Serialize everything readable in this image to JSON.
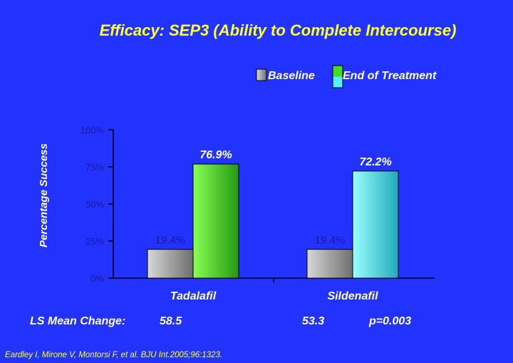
{
  "title": "Efficacy: SEP3 (Ability to Complete Intercourse)",
  "chart_data": {
    "type": "bar",
    "categories": [
      "Tadalafil",
      "Sildenafil"
    ],
    "series": [
      {
        "name": "Baseline",
        "values": [
          19.4,
          19.4
        ],
        "labels": [
          "19.4%",
          "19.4%"
        ],
        "color": "#9a9a9a"
      },
      {
        "name": "End of Treatment",
        "values": [
          76.9,
          72.2
        ],
        "labels": [
          "76.9%",
          "72.2%"
        ],
        "colors": [
          "#44dd22",
          "#55eeff"
        ]
      }
    ],
    "ylabel": "Percentage Success",
    "ylim": [
      0,
      100
    ],
    "yticks": [
      0,
      25,
      50,
      75,
      100
    ],
    "ytick_labels": [
      "0%",
      "25%",
      "50%",
      "75%",
      "100%"
    ],
    "grid": false,
    "legend_position": "top-right"
  },
  "ls_mean": {
    "label": "LS Mean Change:",
    "tadalafil": "58.5",
    "sildenafil": "53.3",
    "p_value": "p=0.003"
  },
  "citation": "Eardley I, Mirone V, Montorsi F, et al. BJU Int.2005;96:1323."
}
